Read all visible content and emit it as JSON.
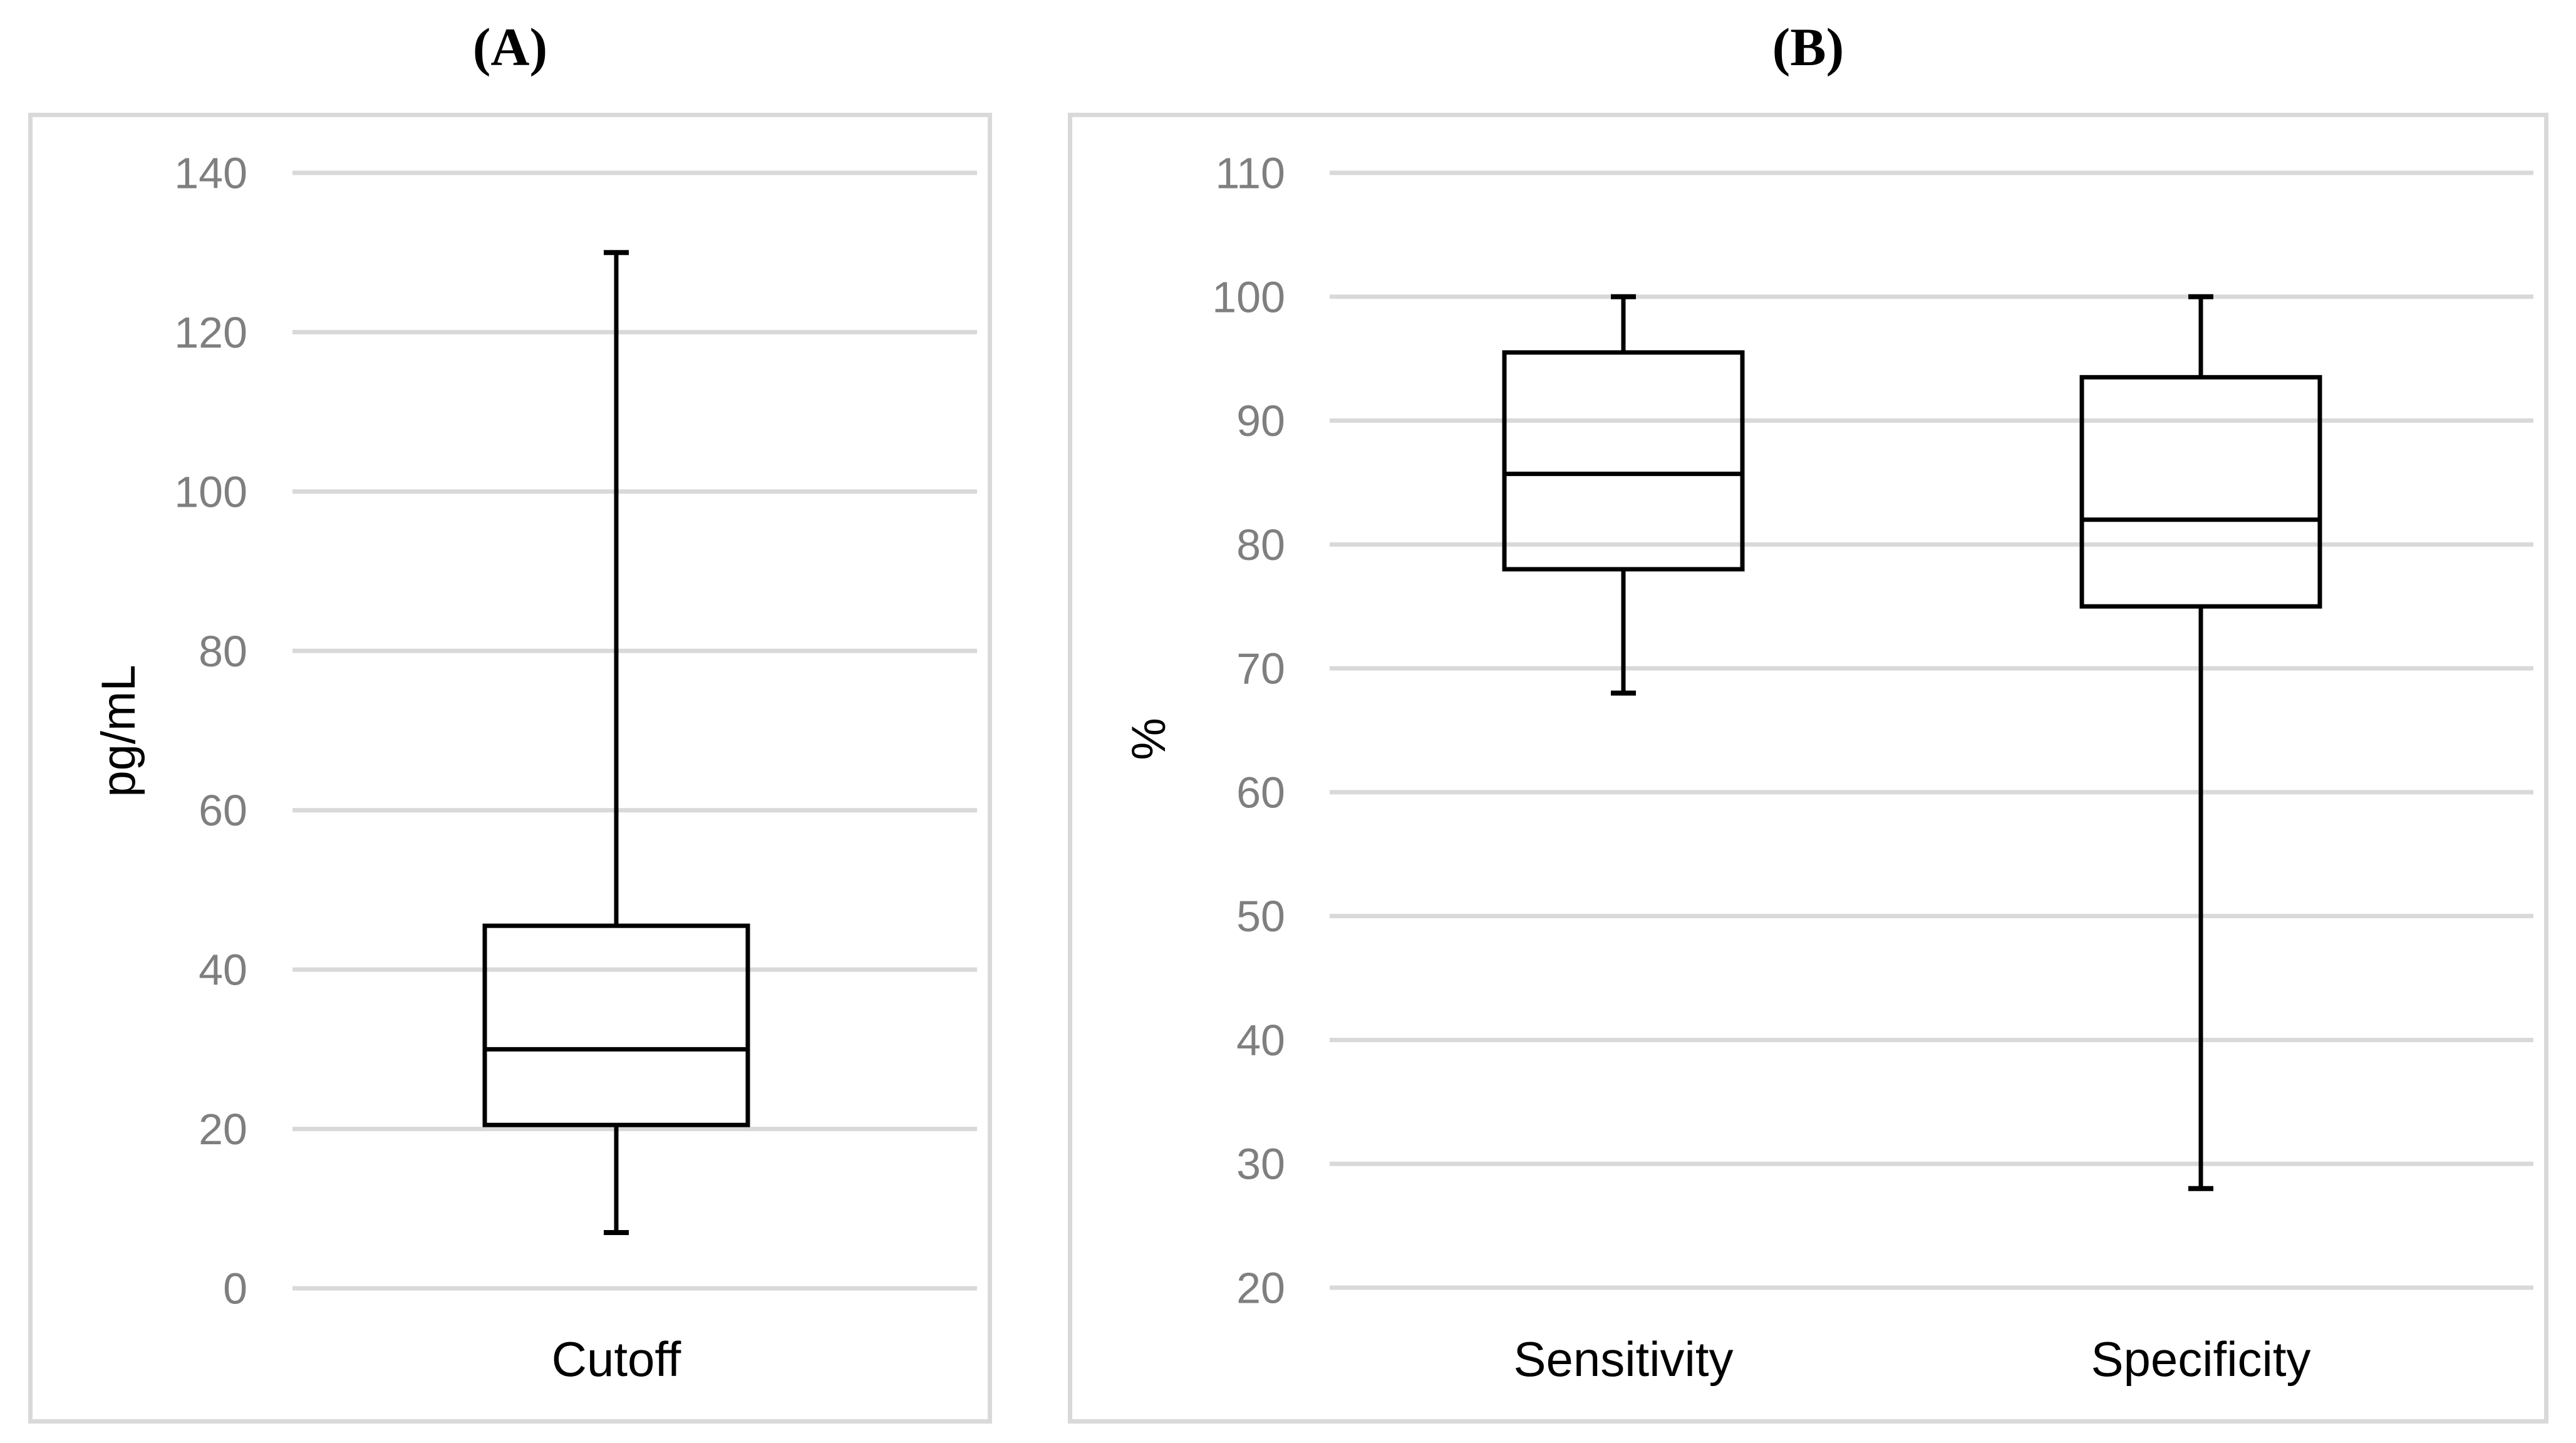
{
  "chart_data": [
    {
      "type": "box",
      "title": "(A)",
      "ylabel": "pg/mL",
      "categories": [
        "Cutoff"
      ],
      "series": [
        {
          "name": "Cutoff",
          "min": 7,
          "q1": 20.5,
          "median": 30,
          "q3": 45.5,
          "max": 130
        }
      ],
      "ylim": [
        0,
        140
      ],
      "ytick_step": 20,
      "grid": true,
      "legend": false,
      "colors": {
        "box_stroke": "#000000",
        "gridline": "#d9d9d9",
        "tick_label": "#7f7f7f",
        "panel_border": "#d9d9d9",
        "background": "#ffffff",
        "text": "#000000"
      }
    },
    {
      "type": "box",
      "title": "(B)",
      "ylabel": "%",
      "categories": [
        "Sensitivity",
        "Specificity"
      ],
      "series": [
        {
          "name": "Sensitivity",
          "min": 68,
          "q1": 78,
          "median": 85.7,
          "q3": 95.5,
          "max": 100
        },
        {
          "name": "Specificity",
          "min": 28,
          "q1": 75,
          "median": 82,
          "q3": 93.5,
          "max": 100
        }
      ],
      "ylim": [
        20,
        110
      ],
      "ytick_step": 10,
      "grid": true,
      "legend": false,
      "colors": {
        "box_stroke": "#000000",
        "gridline": "#d9d9d9",
        "tick_label": "#7f7f7f",
        "panel_border": "#d9d9d9",
        "background": "#ffffff",
        "text": "#000000"
      }
    }
  ]
}
